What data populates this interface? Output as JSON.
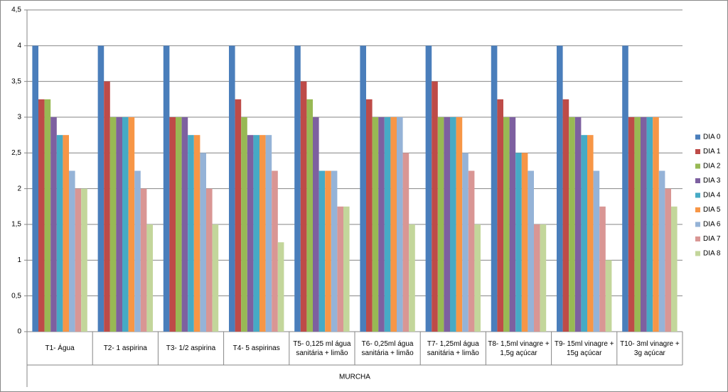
{
  "chart_data": {
    "type": "bar",
    "x_label": "MURCHA",
    "categories": [
      "T1- Água",
      "T2- 1 aspirina",
      "T3- 1/2 aspirina",
      "T4- 5 aspirinas",
      "T5- 0,125 ml água sanitária + limão",
      "T6- 0,25ml água sanitária + limão",
      "T7- 1,25ml água sanitária + limão",
      "T8- 1,5ml vinagre + 1,5g açúcar",
      "T9- 15ml vinagre + 15g açúcar",
      "T10- 3ml vinagre + 3g açúcar"
    ],
    "series": [
      {
        "name": "DIA 0",
        "color": "#4a7ebb",
        "values": [
          4,
          4,
          4,
          4,
          4,
          4,
          4,
          4,
          4,
          4
        ]
      },
      {
        "name": "DIA 1",
        "color": "#be4b48",
        "values": [
          3.25,
          3.5,
          3,
          3.25,
          3.5,
          3.25,
          3.5,
          3.25,
          3.25,
          3
        ]
      },
      {
        "name": "DIA 2",
        "color": "#98b954",
        "values": [
          3.25,
          3,
          3,
          3,
          3.25,
          3,
          3,
          3,
          3,
          3
        ]
      },
      {
        "name": "DIA 3",
        "color": "#7d60a0",
        "values": [
          3,
          3,
          3,
          2.75,
          3,
          3,
          3,
          3,
          3,
          3
        ]
      },
      {
        "name": "DIA 4",
        "color": "#46aac5",
        "values": [
          2.75,
          3,
          2.75,
          2.75,
          2.25,
          3,
          3,
          2.5,
          2.75,
          3
        ]
      },
      {
        "name": "DIA 5",
        "color": "#f79646",
        "values": [
          2.75,
          3,
          2.75,
          2.75,
          2.25,
          3,
          3,
          2.5,
          2.75,
          3
        ]
      },
      {
        "name": "DIA 6",
        "color": "#95b3d7",
        "values": [
          2.25,
          2.25,
          2.5,
          2.75,
          2.25,
          3,
          2.5,
          2.25,
          2.25,
          2.25
        ]
      },
      {
        "name": "DIA 7",
        "color": "#d99694",
        "values": [
          2,
          2,
          2,
          2.25,
          1.75,
          2.5,
          2.25,
          1.5,
          1.75,
          2
        ]
      },
      {
        "name": "DIA 8",
        "color": "#c3d69b",
        "values": [
          2,
          1.5,
          1.5,
          1.25,
          1.75,
          1.5,
          1.5,
          1.5,
          1,
          1.75
        ]
      }
    ],
    "ylim": [
      0,
      4.5
    ],
    "yticks": [
      0,
      {
        "value": 0.5,
        "label": "0,5"
      },
      1,
      {
        "value": 1.5,
        "label": "1,5"
      },
      2,
      {
        "value": 2.5,
        "label": "2,5"
      },
      3,
      {
        "value": 3.5,
        "label": "3,5"
      },
      4,
      {
        "value": 4.5,
        "label": "4,5"
      }
    ],
    "grid": true,
    "legend": "right"
  }
}
